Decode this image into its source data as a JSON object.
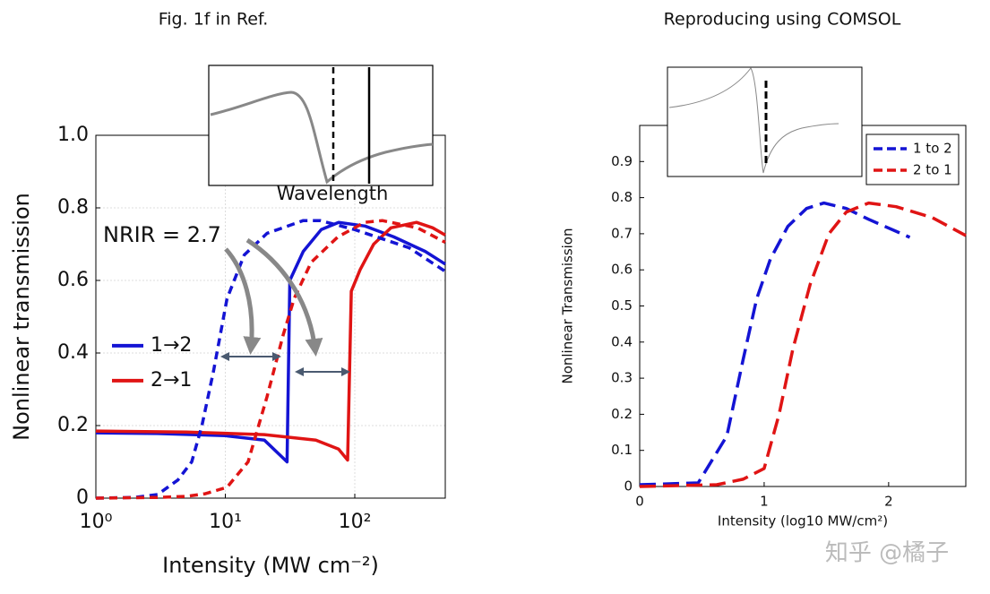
{
  "chart_data": [
    {
      "type": "line",
      "title": "Fig. 1f in Ref.",
      "xlabel": "Intensity (MW cm⁻²)",
      "ylabel": "Nonlinear transmission",
      "xscale": "log",
      "xlim": [
        1,
        500
      ],
      "ylim": [
        0,
        1
      ],
      "xticks": [
        {
          "value": 1,
          "label": "10⁰"
        },
        {
          "value": 10,
          "label": "10¹"
        },
        {
          "value": 100,
          "label": "10²"
        }
      ],
      "yticks": [
        0,
        0.2,
        0.4,
        0.6,
        0.8,
        {
          "value": 1,
          "label": "1.0"
        }
      ],
      "grid": true,
      "legend": "center left",
      "annotation": "NRIR = 2.7",
      "inset_label": "Wavelength",
      "series": [
        {
          "name": "1→2",
          "color": "#1414d4",
          "dashed": false,
          "x": [
            1,
            3,
            10,
            20,
            30,
            31.5,
            40,
            55,
            75,
            120,
            200,
            350,
            500
          ],
          "values": [
            0.18,
            0.178,
            0.172,
            0.16,
            0.1,
            0.6,
            0.68,
            0.74,
            0.76,
            0.75,
            0.72,
            0.68,
            0.645
          ]
        },
        {
          "name": "2→1",
          "color": "#e01414",
          "dashed": false,
          "x": [
            1,
            5,
            20,
            50,
            75,
            88,
            94,
            110,
            140,
            190,
            300,
            400,
            500
          ],
          "values": [
            0.185,
            0.182,
            0.175,
            0.16,
            0.135,
            0.105,
            0.57,
            0.63,
            0.7,
            0.745,
            0.76,
            0.745,
            0.725
          ]
        },
        {
          "color": "#1414d4",
          "dashed": true,
          "x": [
            1,
            2,
            3,
            4.3,
            5.5,
            6.6,
            8.1,
            10.3,
            14,
            21,
            40,
            54,
            100,
            263,
            500
          ],
          "values": [
            0,
            0.002,
            0.01,
            0.05,
            0.1,
            0.2,
            0.35,
            0.55,
            0.67,
            0.73,
            0.765,
            0.765,
            0.74,
            0.69,
            0.625
          ]
        },
        {
          "color": "#e01414",
          "dashed": true,
          "x": [
            1,
            3,
            5,
            7,
            10.3,
            15,
            21,
            28,
            34,
            46,
            74,
            119,
            163,
            305,
            500
          ],
          "values": [
            0,
            0.002,
            0.005,
            0.012,
            0.03,
            0.1,
            0.28,
            0.45,
            0.55,
            0.65,
            0.72,
            0.76,
            0.765,
            0.745,
            0.705
          ]
        }
      ]
    },
    {
      "type": "line",
      "title": "Reproducing using COMSOL",
      "xlabel": "Intensity (log10 MW/cm²)",
      "ylabel": "Nonlinear Transmission",
      "xscale": "linear",
      "xlim": [
        0,
        2.62
      ],
      "ylim": [
        0,
        1
      ],
      "xticks": [
        0,
        1,
        2
      ],
      "yticks": [
        0,
        0.1,
        0.2,
        0.3,
        0.4,
        0.5,
        0.6,
        0.7,
        0.8,
        0.9
      ],
      "grid": false,
      "legend": "upper right",
      "series": [
        {
          "name": "1 to 2",
          "color": "#1414d4",
          "dashed": true,
          "x": [
            0,
            0.47,
            0.7,
            0.83,
            0.94,
            1.05,
            1.19,
            1.34,
            1.48,
            1.66,
            1.84,
            2.17
          ],
          "values": [
            0.005,
            0.01,
            0.14,
            0.35,
            0.52,
            0.63,
            0.72,
            0.77,
            0.785,
            0.77,
            0.74,
            0.69
          ]
        },
        {
          "name": "2 to 1",
          "color": "#e01414",
          "dashed": true,
          "x": [
            0,
            0.62,
            0.83,
            1.0,
            1.12,
            1.23,
            1.37,
            1.52,
            1.66,
            1.84,
            2.06,
            2.35,
            2.62
          ],
          "values": [
            0,
            0.005,
            0.02,
            0.05,
            0.2,
            0.38,
            0.56,
            0.7,
            0.76,
            0.785,
            0.775,
            0.745,
            0.695
          ]
        }
      ]
    }
  ],
  "watermark": "知乎 @橘子"
}
